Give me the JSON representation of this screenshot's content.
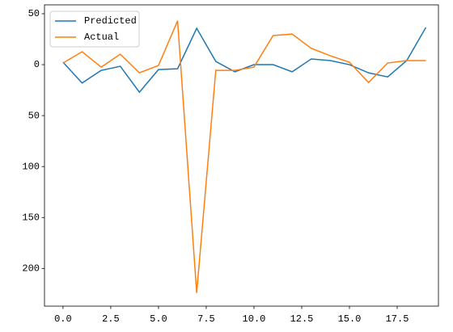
{
  "chart_data": {
    "type": "line",
    "x": [
      0,
      1,
      2,
      3,
      4,
      5,
      6,
      7,
      8,
      9,
      10,
      11,
      12,
      13,
      14,
      15,
      16,
      17,
      18,
      19
    ],
    "series": [
      {
        "name": "Predicted",
        "color": "#1f77b4",
        "values": [
          2.4,
          -18,
          -5.6,
          -1.6,
          -27,
          -4.8,
          -4,
          35.7,
          3.2,
          -7,
          0,
          0,
          -7,
          5.6,
          4,
          0,
          -8,
          -12,
          4,
          36.5
        ]
      },
      {
        "name": "Actual",
        "color": "#ff7f0e",
        "values": [
          1.6,
          12.7,
          -2.4,
          10.3,
          -8,
          -0.8,
          43,
          -224,
          -5.6,
          -5.6,
          -2.4,
          28.6,
          30,
          16,
          8.7,
          2.4,
          -17.5,
          1.6,
          4,
          4
        ]
      }
    ],
    "xlim": [
      -0.97,
      19.66
    ],
    "ylim": [
      -237,
      58.7
    ],
    "xticks": [
      {
        "value": 0,
        "label": "0.0"
      },
      2.5,
      {
        "value": 5,
        "label": "5.0"
      },
      7.5,
      {
        "value": 10,
        "label": "10.0"
      },
      12.5,
      {
        "value": 15,
        "label": "15.0"
      },
      17.5
    ],
    "yticks": [
      {
        "value": 50,
        "label": "50"
      },
      0,
      {
        "value": -50,
        "label": "50"
      },
      {
        "value": -100,
        "label": "100"
      },
      {
        "value": -150,
        "label": "150"
      },
      {
        "value": -200,
        "label": "200"
      }
    ],
    "legend": "upper left"
  }
}
